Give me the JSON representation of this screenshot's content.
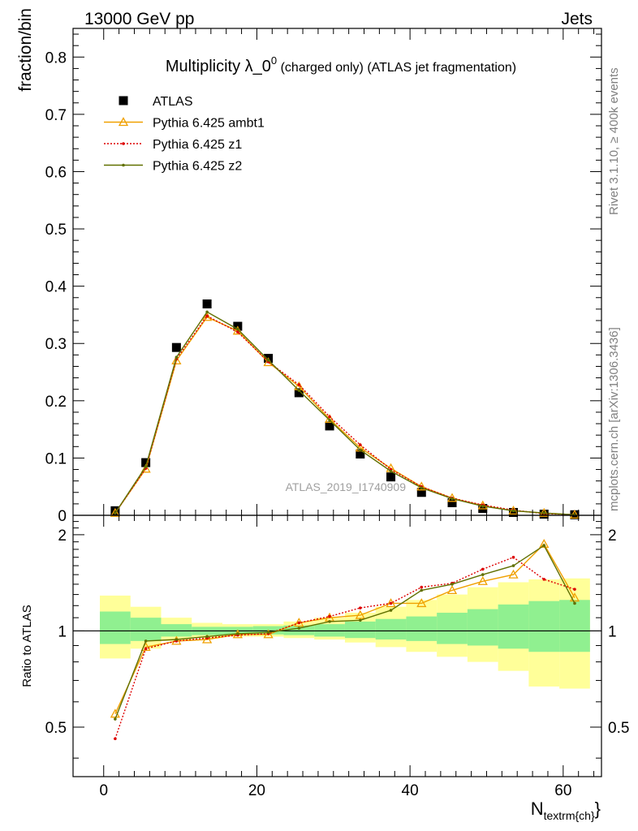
{
  "header": {
    "left": "13000 GeV pp",
    "right": "Jets",
    "side_top": "Rivet 3.1.10, ≥ 400k events",
    "side_bottom": "mcplots.cern.ch [arXiv:1306.3436]",
    "analysis_tag": "ATLAS_2019_I1740909"
  },
  "chart_data": [
    {
      "type": "scatter",
      "title": "Multiplicity λ_0⁰ (charged only) (ATLAS jet fragmentation)",
      "title_main": "Multiplicity λ_0",
      "title_sup": "0",
      "title_rest": " (charged only) (ATLAS jet fragmentation)",
      "ylabel": "fraction/bin",
      "xlabel": "N",
      "xlabel_sub": "textrm{ch}",
      "xlim": [
        -4,
        65
      ],
      "ylim": [
        0,
        0.85
      ],
      "yticks": [
        "0",
        "0.1",
        "0.2",
        "0.3",
        "0.4",
        "0.5",
        "0.6",
        "0.7",
        "0.8"
      ],
      "legend_position": "top-left",
      "x": [
        1.5,
        5.5,
        9.5,
        13.5,
        17.5,
        21.5,
        25.5,
        29.5,
        33.5,
        37.5,
        41.5,
        45.5,
        49.5,
        53.5,
        57.5,
        61.5
      ],
      "series": [
        {
          "name": "ATLAS",
          "color": "#000000",
          "marker": "square",
          "values": [
            0.008,
            0.092,
            0.293,
            0.369,
            0.33,
            0.274,
            0.214,
            0.156,
            0.107,
            0.067,
            0.04,
            0.022,
            0.012,
            0.005,
            0.002,
            0.001
          ]
        },
        {
          "name": "Pythia 6.425 ambt1",
          "color": "#f0a000",
          "marker": "triangle",
          "values": [
            0.004,
            0.081,
            0.27,
            0.346,
            0.322,
            0.267,
            0.225,
            0.168,
            0.118,
            0.082,
            0.05,
            0.03,
            0.017,
            0.008,
            0.004,
            0.001
          ]
        },
        {
          "name": "Pythia 6.425 z1",
          "color": "#dd0000",
          "marker": "dot",
          "dashed": true,
          "values": [
            0.004,
            0.082,
            0.273,
            0.348,
            0.32,
            0.268,
            0.228,
            0.172,
            0.123,
            0.08,
            0.05,
            0.03,
            0.018,
            0.009,
            0.003,
            0.001
          ]
        },
        {
          "name": "Pythia 6.425 z2",
          "color": "#607000",
          "marker": "dot",
          "values": [
            0.004,
            0.085,
            0.276,
            0.355,
            0.325,
            0.271,
            0.218,
            0.166,
            0.114,
            0.077,
            0.048,
            0.029,
            0.016,
            0.008,
            0.004,
            0.001
          ]
        }
      ]
    },
    {
      "type": "line",
      "ylabel": "Ratio to ATLAS",
      "xlim": [
        -4,
        65
      ],
      "ylim": [
        0.35,
        2.3
      ],
      "yticks": [
        "0.5",
        "1",
        "2"
      ],
      "xticks": [
        "0",
        "20",
        "40",
        "60"
      ],
      "bands": {
        "x_edges": [
          -0.5,
          3.5,
          7.5,
          11.5,
          15.5,
          19.5,
          23.5,
          27.5,
          31.5,
          35.5,
          39.5,
          43.5,
          47.5,
          51.5,
          55.5,
          59.5,
          63.5
        ],
        "stat_low": [
          0.91,
          0.93,
          0.96,
          0.97,
          0.975,
          0.975,
          0.97,
          0.96,
          0.95,
          0.94,
          0.93,
          0.91,
          0.9,
          0.88,
          0.86,
          0.86
        ],
        "stat_high": [
          1.15,
          1.1,
          1.05,
          1.03,
          1.03,
          1.035,
          1.04,
          1.05,
          1.07,
          1.09,
          1.11,
          1.14,
          1.17,
          1.21,
          1.24,
          1.25
        ],
        "syst_low": [
          0.82,
          0.88,
          0.93,
          0.95,
          0.96,
          0.96,
          0.95,
          0.94,
          0.92,
          0.89,
          0.86,
          0.83,
          0.8,
          0.75,
          0.67,
          0.66
        ],
        "syst_high": [
          1.29,
          1.19,
          1.1,
          1.06,
          1.05,
          1.05,
          1.07,
          1.1,
          1.14,
          1.19,
          1.25,
          1.3,
          1.37,
          1.42,
          1.45,
          1.46
        ],
        "stat_color": "#90f090",
        "syst_color": "#ffff99"
      },
      "series": [
        {
          "name": "Pythia 6.425 ambt1",
          "color": "#f0a000",
          "marker": "triangle",
          "values": [
            0.55,
            0.89,
            0.93,
            0.94,
            0.975,
            0.975,
            1.06,
            1.1,
            1.12,
            1.22,
            1.22,
            1.34,
            1.43,
            1.5,
            1.87,
            1.27
          ]
        },
        {
          "name": "Pythia 6.425 z1",
          "color": "#dd0000",
          "marker": "dot",
          "dashed": true,
          "values": [
            0.46,
            0.88,
            0.93,
            0.95,
            0.97,
            0.98,
            1.06,
            1.11,
            1.18,
            1.22,
            1.37,
            1.41,
            1.56,
            1.7,
            1.45,
            1.35
          ]
        },
        {
          "name": "Pythia 6.425 z2",
          "color": "#607000",
          "marker": "dot",
          "values": [
            0.53,
            0.93,
            0.94,
            0.96,
            0.98,
            0.99,
            1.02,
            1.07,
            1.08,
            1.16,
            1.34,
            1.4,
            1.5,
            1.6,
            1.85,
            1.22
          ]
        }
      ]
    }
  ]
}
